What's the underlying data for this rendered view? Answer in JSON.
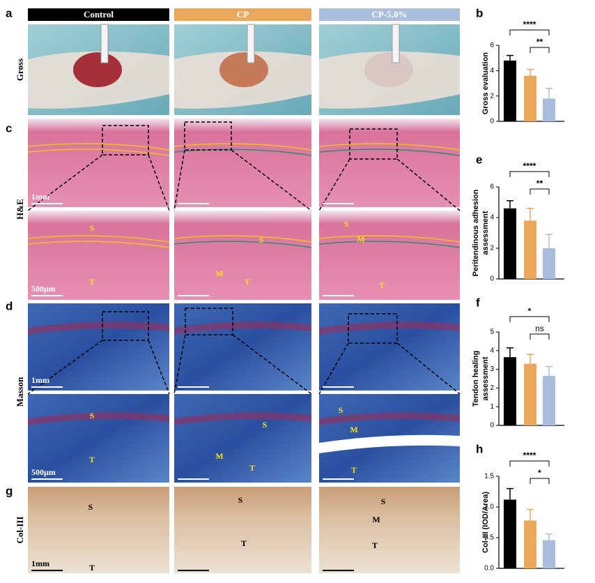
{
  "figure": {
    "panel_labels": [
      "a",
      "c",
      "d",
      "g"
    ],
    "groups": [
      "Control",
      "CP",
      "CP-5.0%"
    ],
    "rows": [
      "Gross",
      "H&E",
      "Masson",
      "Col-III"
    ],
    "scale_labels": {
      "he_top": "1mm",
      "he_bottom": "500μm",
      "masson_top": "1mm",
      "masson_bottom": "500μm",
      "col": "1mm"
    },
    "he_letters": [
      [
        "S",
        "T"
      ],
      [
        "S",
        "M",
        "T"
      ],
      [
        "S",
        "M",
        "T"
      ]
    ],
    "masson_letters": [
      [
        "S",
        "T"
      ],
      [
        "S",
        "M",
        "T"
      ],
      [
        "S",
        "M",
        "T"
      ]
    ],
    "col_letters": [
      [
        "S",
        "T"
      ],
      [
        "S",
        "T"
      ],
      [
        "S",
        "M",
        "T"
      ]
    ]
  },
  "chart_data": [
    {
      "type": "bar",
      "panel": "b",
      "ylabel": [
        "Gross evaluation"
      ],
      "categories": [
        null,
        null,
        null
      ],
      "values": [
        4.8,
        3.6,
        1.8
      ],
      "errors": [
        0.4,
        0.5,
        0.8
      ],
      "colors": [
        "#000000",
        "#e9a85c",
        "#a9bedd"
      ],
      "ylim": [
        0,
        6
      ],
      "yticks": [
        0,
        2,
        4,
        6
      ],
      "brackets": [
        {
          "label": "****",
          "bars": [
            0,
            2
          ]
        },
        {
          "label": "**",
          "bars": [
            1,
            2
          ]
        }
      ]
    },
    {
      "type": "bar",
      "panel": "e",
      "ylabel": [
        "Peritendinous adhesion",
        "assessment"
      ],
      "categories": [
        null,
        null,
        null
      ],
      "values": [
        4.6,
        3.8,
        2.0
      ],
      "errors": [
        0.5,
        0.8,
        0.9
      ],
      "colors": [
        "#000000",
        "#e9a85c",
        "#a9bedd"
      ],
      "ylim": [
        0,
        6
      ],
      "yticks": [
        0,
        2,
        4,
        6
      ],
      "brackets": [
        {
          "label": "****",
          "bars": [
            0,
            2
          ]
        },
        {
          "label": "**",
          "bars": [
            1,
            2
          ]
        }
      ]
    },
    {
      "type": "bar",
      "panel": "f",
      "ylabel": [
        "Tendon healing",
        "assessment"
      ],
      "categories": [
        null,
        null,
        null
      ],
      "values": [
        3.65,
        3.3,
        2.65
      ],
      "errors": [
        0.5,
        0.5,
        0.5
      ],
      "colors": [
        "#000000",
        "#e9a85c",
        "#a9bedd"
      ],
      "ylim": [
        0,
        5
      ],
      "yticks": [
        0,
        1,
        2,
        3,
        4,
        5
      ],
      "brackets": [
        {
          "label": "*",
          "bars": [
            0,
            2
          ]
        },
        {
          "label": "ns",
          "bars": [
            1,
            2
          ]
        }
      ]
    },
    {
      "type": "bar",
      "panel": "h",
      "ylabel": [
        "Col-III (IOD/Area)"
      ],
      "categories": [
        null,
        null,
        null
      ],
      "values": [
        1.12,
        0.78,
        0.46
      ],
      "errors": [
        0.18,
        0.18,
        0.1
      ],
      "colors": [
        "#000000",
        "#e9a85c",
        "#a9bedd"
      ],
      "ylim": [
        0,
        1.5
      ],
      "yticks": [
        {
          "value": 0,
          "label": "0.0"
        },
        0.5,
        {
          "value": 1,
          "label": "1.0"
        },
        1.5
      ],
      "brackets": [
        {
          "label": "****",
          "bars": [
            0,
            2
          ]
        },
        {
          "label": "*",
          "bars": [
            1,
            2
          ]
        }
      ]
    }
  ]
}
